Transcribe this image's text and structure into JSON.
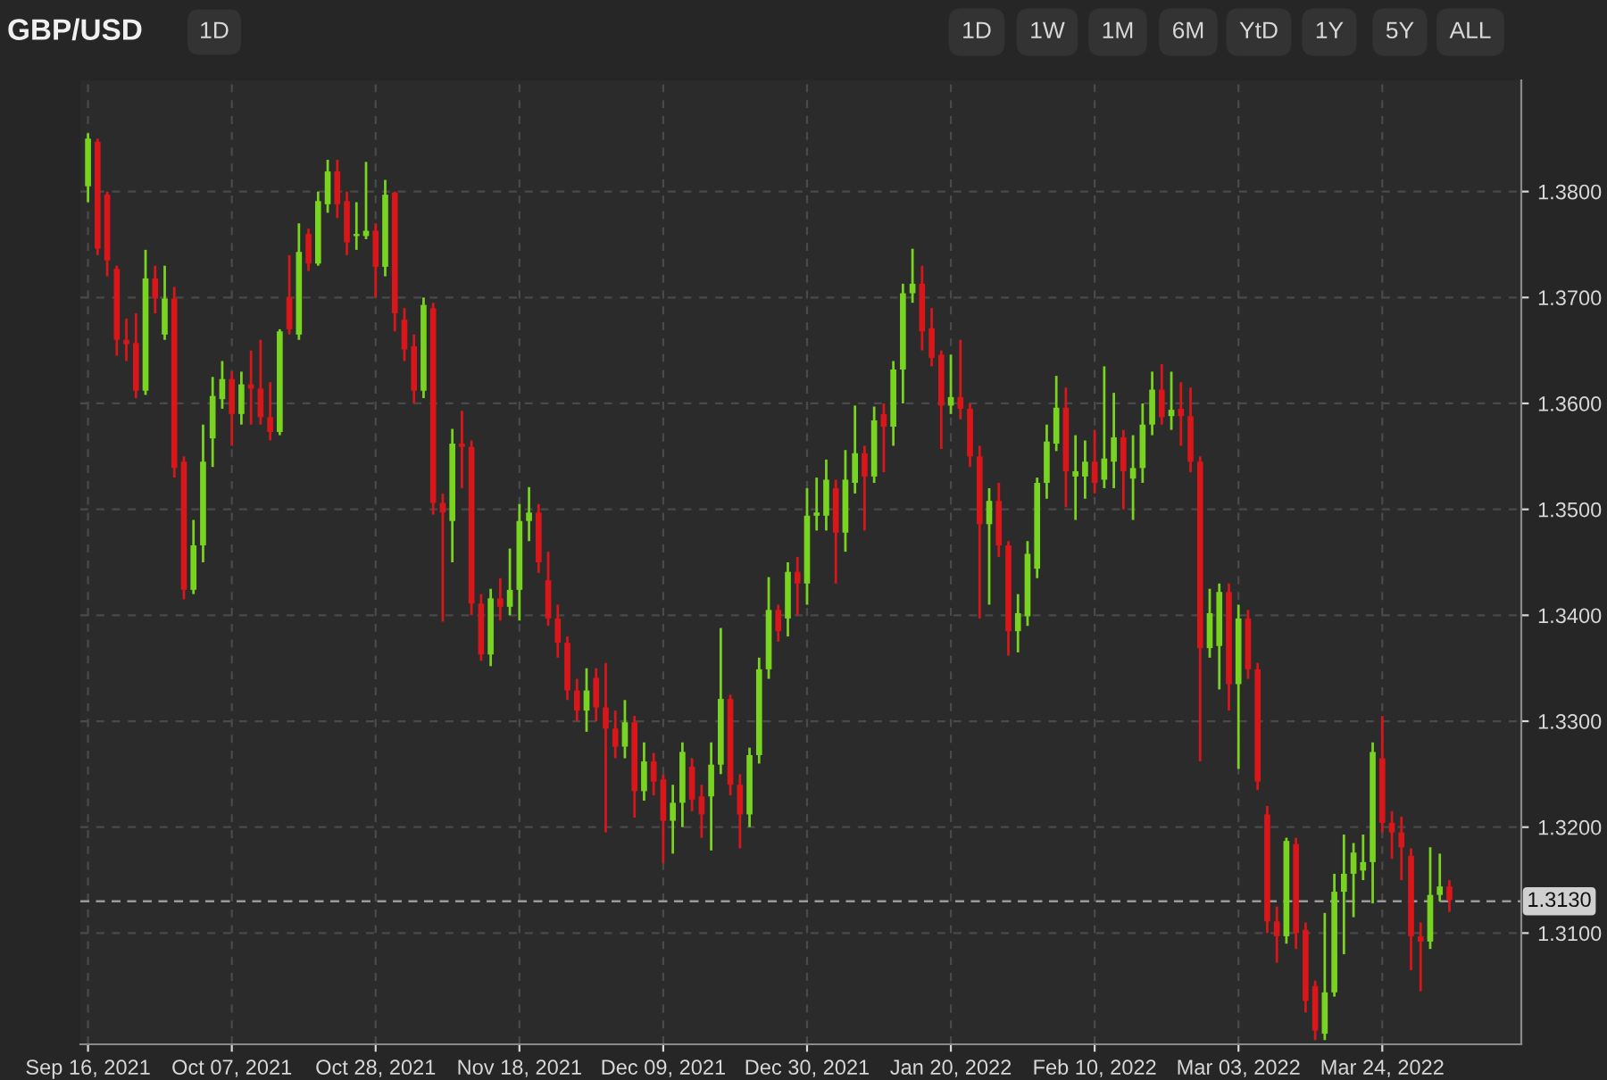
{
  "chart_data": {
    "type": "candlestick",
    "title": "GBP/USD",
    "annotations": [
      "1D",
      "1D",
      "1W",
      "1M",
      "6M",
      "YtD",
      "1Y",
      "5Y",
      "ALL"
    ],
    "categories": [
      "Sep 16, 2021",
      null,
      null,
      null,
      null,
      null,
      null,
      null,
      null,
      null,
      null,
      null,
      null,
      null,
      null,
      "Oct 07, 2021",
      null,
      null,
      null,
      null,
      null,
      null,
      null,
      null,
      null,
      null,
      null,
      null,
      null,
      null,
      "Oct 28, 2021",
      null,
      null,
      null,
      null,
      null,
      null,
      null,
      null,
      null,
      null,
      null,
      null,
      null,
      null,
      "Nov 18, 2021",
      null,
      null,
      null,
      null,
      null,
      null,
      null,
      null,
      null,
      null,
      null,
      null,
      null,
      null,
      "Dec 09, 2021",
      null,
      null,
      null,
      null,
      null,
      null,
      null,
      null,
      null,
      null,
      null,
      null,
      null,
      null,
      "Dec 30, 2021",
      null,
      null,
      null,
      null,
      null,
      null,
      null,
      null,
      null,
      null,
      null,
      null,
      null,
      null,
      "Jan 20, 2022",
      null,
      null,
      null,
      null,
      null,
      null,
      null,
      null,
      null,
      null,
      null,
      null,
      null,
      null,
      "Feb 10, 2022",
      null,
      null,
      null,
      null,
      null,
      null,
      null,
      null,
      null,
      null,
      null,
      null,
      null,
      null,
      "Mar 03, 2022",
      null,
      null,
      null,
      null,
      null,
      null,
      null,
      null,
      null,
      null,
      null,
      null,
      null,
      null,
      "Mar 24, 2022",
      null,
      null,
      null,
      null,
      null,
      null,
      null
    ],
    "ohlc": [
      [
        1.3805,
        1.3855,
        1.379,
        1.385
      ],
      [
        1.3847,
        1.385,
        1.374,
        1.3746
      ],
      [
        1.3797,
        1.38,
        1.372,
        1.3735
      ],
      [
        1.3727,
        1.373,
        1.3645,
        1.366
      ],
      [
        1.366,
        1.368,
        1.364,
        1.3656
      ],
      [
        1.3657,
        1.3685,
        1.3605,
        1.3612
      ],
      [
        1.3612,
        1.3745,
        1.3608,
        1.3718
      ],
      [
        1.3718,
        1.373,
        1.3685,
        1.3699
      ],
      [
        1.3665,
        1.373,
        1.366,
        1.3699
      ],
      [
        1.3699,
        1.371,
        1.353,
        1.3539
      ],
      [
        1.3545,
        1.355,
        1.3415,
        1.3424
      ],
      [
        1.3424,
        1.349,
        1.342,
        1.3466
      ],
      [
        1.3466,
        1.358,
        1.345,
        1.3545
      ],
      [
        1.3567,
        1.3625,
        1.354,
        1.3607
      ],
      [
        1.3604,
        1.364,
        1.3595,
        1.3623
      ],
      [
        1.3623,
        1.363,
        1.356,
        1.359
      ],
      [
        1.359,
        1.363,
        1.358,
        1.3618
      ],
      [
        1.3618,
        1.365,
        1.358,
        1.3614
      ],
      [
        1.3614,
        1.366,
        1.358,
        1.3587
      ],
      [
        1.3587,
        1.362,
        1.3565,
        1.3573
      ],
      [
        1.3573,
        1.367,
        1.357,
        1.3668
      ],
      [
        1.37,
        1.374,
        1.3665,
        1.367
      ],
      [
        1.3665,
        1.377,
        1.366,
        1.3743
      ],
      [
        1.376,
        1.3765,
        1.3725,
        1.3732
      ],
      [
        1.3732,
        1.38,
        1.373,
        1.3791
      ],
      [
        1.3788,
        1.383,
        1.378,
        1.3819
      ],
      [
        1.3819,
        1.383,
        1.3775,
        1.3788
      ],
      [
        1.3791,
        1.38,
        1.374,
        1.3752
      ],
      [
        1.3758,
        1.379,
        1.3745,
        1.376
      ],
      [
        1.3758,
        1.3828,
        1.3755,
        1.3763
      ],
      [
        1.3763,
        1.377,
        1.37,
        1.3729
      ],
      [
        1.3729,
        1.3811,
        1.372,
        1.3797
      ],
      [
        1.3799,
        1.38,
        1.3668,
        1.3685
      ],
      [
        1.3679,
        1.369,
        1.364,
        1.3651
      ],
      [
        1.3654,
        1.3665,
        1.36,
        1.3612
      ],
      [
        1.3612,
        1.37,
        1.3605,
        1.3693
      ],
      [
        1.369,
        1.3695,
        1.3495,
        1.3506
      ],
      [
        1.3506,
        1.3515,
        1.3394,
        1.3497
      ],
      [
        1.3489,
        1.3576,
        1.345,
        1.3562
      ],
      [
        1.3562,
        1.3593,
        1.352,
        1.3559
      ],
      [
        1.3559,
        1.3565,
        1.34,
        1.3411
      ],
      [
        1.3411,
        1.342,
        1.3357,
        1.3363
      ],
      [
        1.3363,
        1.3425,
        1.3352,
        1.3416
      ],
      [
        1.3416,
        1.3435,
        1.3395,
        1.3408
      ],
      [
        1.3408,
        1.3463,
        1.34,
        1.3424
      ],
      [
        1.3424,
        1.3505,
        1.3395,
        1.3489
      ],
      [
        1.3489,
        1.3521,
        1.347,
        1.3497
      ],
      [
        1.3497,
        1.3505,
        1.344,
        1.345
      ],
      [
        1.3433,
        1.346,
        1.339,
        1.3397
      ],
      [
        1.3397,
        1.341,
        1.336,
        1.3374
      ],
      [
        1.3374,
        1.338,
        1.332,
        1.3329
      ],
      [
        1.3329,
        1.334,
        1.33,
        1.331
      ],
      [
        1.331,
        1.335,
        1.329,
        1.3329
      ],
      [
        1.3341,
        1.335,
        1.33,
        1.3313
      ],
      [
        1.3313,
        1.3355,
        1.3195,
        1.3293
      ],
      [
        1.3293,
        1.331,
        1.3265,
        1.3276
      ],
      [
        1.3276,
        1.332,
        1.3265,
        1.3299
      ],
      [
        1.3299,
        1.3305,
        1.3209,
        1.3234
      ],
      [
        1.3234,
        1.328,
        1.3225,
        1.3262
      ],
      [
        1.3262,
        1.327,
        1.323,
        1.3243
      ],
      [
        1.3245,
        1.325,
        1.3166,
        1.3206
      ],
      [
        1.3206,
        1.324,
        1.3175,
        1.3223
      ],
      [
        1.3223,
        1.328,
        1.32,
        1.3271
      ],
      [
        1.3257,
        1.3265,
        1.3215,
        1.3226
      ],
      [
        1.3229,
        1.324,
        1.319,
        1.3212
      ],
      [
        1.3229,
        1.328,
        1.3178,
        1.3259
      ],
      [
        1.3259,
        1.3388,
        1.325,
        1.3321
      ],
      [
        1.3321,
        1.3325,
        1.323,
        1.324
      ],
      [
        1.324,
        1.325,
        1.318,
        1.3212
      ],
      [
        1.3212,
        1.3275,
        1.32,
        1.3268
      ],
      [
        1.3268,
        1.336,
        1.326,
        1.3349
      ],
      [
        1.3349,
        1.3436,
        1.334,
        1.3405
      ],
      [
        1.3405,
        1.341,
        1.3375,
        1.3385
      ],
      [
        1.3397,
        1.345,
        1.338,
        1.3441
      ],
      [
        1.3441,
        1.3455,
        1.34,
        1.343
      ],
      [
        1.343,
        1.352,
        1.341,
        1.3494
      ],
      [
        1.3494,
        1.353,
        1.348,
        1.3497
      ],
      [
        1.3494,
        1.3547,
        1.348,
        1.3528
      ],
      [
        1.352,
        1.3528,
        1.343,
        1.3478
      ],
      [
        1.3478,
        1.3556,
        1.346,
        1.3528
      ],
      [
        1.3525,
        1.3598,
        1.3515,
        1.3553
      ],
      [
        1.3553,
        1.356,
        1.348,
        1.3531
      ],
      [
        1.3531,
        1.3597,
        1.3525,
        1.3584
      ],
      [
        1.359,
        1.36,
        1.3535,
        1.3578
      ],
      [
        1.3578,
        1.364,
        1.356,
        1.3632
      ],
      [
        1.3632,
        1.3713,
        1.36,
        1.3704
      ],
      [
        1.3704,
        1.3746,
        1.3695,
        1.3713
      ],
      [
        1.3713,
        1.373,
        1.365,
        1.3668
      ],
      [
        1.3671,
        1.369,
        1.3635,
        1.3643
      ],
      [
        1.3646,
        1.365,
        1.3557,
        1.3598
      ],
      [
        1.3598,
        1.3646,
        1.359,
        1.3606
      ],
      [
        1.3606,
        1.366,
        1.3585,
        1.3595
      ],
      [
        1.3595,
        1.36,
        1.354,
        1.355
      ],
      [
        1.355,
        1.356,
        1.3397,
        1.3486
      ],
      [
        1.3486,
        1.352,
        1.341,
        1.3508
      ],
      [
        1.3508,
        1.3525,
        1.3455,
        1.3466
      ],
      [
        1.3466,
        1.347,
        1.3362,
        1.3385
      ],
      [
        1.3385,
        1.342,
        1.3365,
        1.3402
      ],
      [
        1.3399,
        1.347,
        1.339,
        1.3458
      ],
      [
        1.3444,
        1.353,
        1.3435,
        1.3525
      ],
      [
        1.3525,
        1.358,
        1.351,
        1.3564
      ],
      [
        1.3562,
        1.3626,
        1.3555,
        1.3596
      ],
      [
        1.3596,
        1.3615,
        1.3502,
        1.3536
      ],
      [
        1.3531,
        1.357,
        1.349,
        1.3536
      ],
      [
        1.3531,
        1.3565,
        1.351,
        1.3545
      ],
      [
        1.3545,
        1.3575,
        1.3515,
        1.3525
      ],
      [
        1.3528,
        1.3635,
        1.352,
        1.3548
      ],
      [
        1.3545,
        1.361,
        1.352,
        1.3568
      ],
      [
        1.3568,
        1.3575,
        1.35,
        1.3536
      ],
      [
        1.3529,
        1.357,
        1.349,
        1.3539
      ],
      [
        1.3539,
        1.36,
        1.3525,
        1.358
      ],
      [
        1.358,
        1.363,
        1.357,
        1.3613
      ],
      [
        1.3613,
        1.3637,
        1.358,
        1.3587
      ],
      [
        1.3588,
        1.363,
        1.3575,
        1.3594
      ],
      [
        1.3595,
        1.362,
        1.356,
        1.3588
      ],
      [
        1.3588,
        1.3615,
        1.3535,
        1.3545
      ],
      [
        1.3545,
        1.355,
        1.3262,
        1.3369
      ],
      [
        1.3369,
        1.3425,
        1.336,
        1.3402
      ],
      [
        1.3371,
        1.343,
        1.333,
        1.3422
      ],
      [
        1.3422,
        1.343,
        1.331,
        1.3335
      ],
      [
        1.3335,
        1.341,
        1.3255,
        1.3397
      ],
      [
        1.3397,
        1.3405,
        1.334,
        1.3349
      ],
      [
        1.3349,
        1.3355,
        1.3235,
        1.3243
      ],
      [
        1.3212,
        1.322,
        1.31,
        1.3111
      ],
      [
        1.3111,
        1.3125,
        1.3072,
        1.3097
      ],
      [
        1.3097,
        1.319,
        1.309,
        1.3187
      ],
      [
        1.3184,
        1.319,
        1.3085,
        1.31
      ],
      [
        1.3103,
        1.311,
        1.3025,
        1.3036
      ],
      [
        1.305,
        1.3055,
        1.2999,
        1.3008
      ],
      [
        1.3005,
        1.3119,
        1.2999,
        1.3044
      ],
      [
        1.3044,
        1.3156,
        1.304,
        1.3139
      ],
      [
        1.3139,
        1.3193,
        1.308,
        1.3156
      ],
      [
        1.3156,
        1.3185,
        1.3115,
        1.3176
      ],
      [
        1.3159,
        1.3193,
        1.315,
        1.3167
      ],
      [
        1.3167,
        1.328,
        1.3128,
        1.3271
      ],
      [
        1.3265,
        1.3305,
        1.3195,
        1.3204
      ],
      [
        1.3204,
        1.3215,
        1.317,
        1.3195
      ],
      [
        1.3195,
        1.321,
        1.315,
        1.3181
      ],
      [
        1.3173,
        1.318,
        1.3065,
        1.3097
      ],
      [
        1.3097,
        1.311,
        1.3045,
        1.3092
      ],
      [
        1.3092,
        1.3181,
        1.3085,
        1.3136
      ],
      [
        1.3136,
        1.3175,
        1.313,
        1.3144
      ],
      [
        1.3144,
        1.315,
        1.312,
        1.3131
      ]
    ],
    "colors": [
      "#79d321",
      "#d9161a",
      "#d9161a",
      "#d9161a",
      "#d9161a",
      "#d9161a",
      "#79d321",
      "#d9161a",
      "#79d321",
      "#d9161a",
      "#d9161a",
      "#79d321",
      "#79d321",
      "#79d321",
      "#79d321",
      "#d9161a",
      "#79d321",
      "#d9161a",
      "#d9161a",
      "#d9161a",
      "#79d321",
      "#d9161a",
      "#79d321",
      "#d9161a",
      "#79d321",
      "#79d321",
      "#d9161a",
      "#d9161a",
      "#79d321",
      "#79d321",
      "#d9161a",
      "#79d321",
      "#d9161a",
      "#d9161a",
      "#d9161a",
      "#79d321",
      "#d9161a",
      "#d9161a",
      "#79d321",
      "#d9161a",
      "#d9161a",
      "#d9161a",
      "#79d321",
      "#d9161a",
      "#79d321",
      "#79d321",
      "#79d321",
      "#d9161a",
      "#d9161a",
      "#d9161a",
      "#d9161a",
      "#d9161a",
      "#79d321",
      "#d9161a",
      "#d9161a",
      "#d9161a",
      "#79d321",
      "#d9161a",
      "#79d321",
      "#d9161a",
      "#d9161a",
      "#79d321",
      "#79d321",
      "#d9161a",
      "#d9161a",
      "#79d321",
      "#79d321",
      "#d9161a",
      "#d9161a",
      "#79d321",
      "#79d321",
      "#79d321",
      "#d9161a",
      "#79d321",
      "#d9161a",
      "#79d321",
      "#79d321",
      "#79d321",
      "#d9161a",
      "#79d321",
      "#79d321",
      "#d9161a",
      "#79d321",
      "#d9161a",
      "#79d321",
      "#79d321",
      "#79d321",
      "#d9161a",
      "#d9161a",
      "#d9161a",
      "#79d321",
      "#d9161a",
      "#d9161a",
      "#d9161a",
      "#79d321",
      "#d9161a",
      "#d9161a",
      "#79d321",
      "#79d321",
      "#79d321",
      "#79d321",
      "#79d321",
      "#d9161a",
      "#79d321",
      "#79d321",
      "#d9161a",
      "#79d321",
      "#79d321",
      "#d9161a",
      "#79d321",
      "#79d321",
      "#79d321",
      "#d9161a",
      "#79d321",
      "#d9161a",
      "#d9161a",
      "#d9161a",
      "#79d321",
      "#79d321",
      "#d9161a",
      "#79d321",
      "#d9161a",
      "#d9161a",
      "#d9161a",
      "#d9161a",
      "#79d321",
      "#d9161a",
      "#d9161a",
      "#d9161a",
      "#79d321",
      "#79d321",
      "#79d321",
      "#79d321",
      "#79d321",
      "#79d321",
      "#d9161a",
      "#d9161a",
      "#d9161a",
      "#d9161a",
      "#d9161a",
      "#79d321",
      "#79d321",
      "#d9161a"
    ],
    "ylim": [
      1.2995,
      1.3905
    ],
    "yticks": [
      {
        "value": 1.31,
        "label": "1.3100"
      },
      {
        "value": 1.32,
        "label": "1.3200"
      },
      {
        "value": 1.33,
        "label": "1.3300"
      },
      {
        "value": 1.34,
        "label": "1.3400"
      },
      {
        "value": 1.35,
        "label": "1.3500"
      },
      {
        "value": 1.36,
        "label": "1.3600"
      },
      {
        "value": 1.37,
        "label": "1.3700"
      },
      {
        "value": 1.38,
        "label": "1.3800"
      }
    ],
    "ref_lines": [
      {
        "axis": "y",
        "value": 1.313,
        "label": "1.3130",
        "color": "#9a9a9a",
        "line_style": "dashed"
      }
    ],
    "grid": true
  }
}
